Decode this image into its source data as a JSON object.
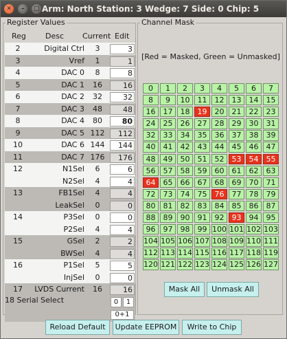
{
  "window": {
    "title": "Arm: North Station: 3 Wedge: 7 Side: 0 Chip: 5"
  },
  "registers": {
    "group_label": "Register Values",
    "headers": {
      "reg": "Reg",
      "desc": "Desc",
      "current": "Current",
      "edit": "Edit"
    },
    "rows": [
      {
        "reg": "2",
        "desc": "Digital Ctrl",
        "current": "3",
        "edit": "3"
      },
      {
        "reg": "3",
        "desc": "Vref",
        "current": "1",
        "edit": "1"
      },
      {
        "reg": "4",
        "desc": "DAC 0",
        "current": "8",
        "edit": "8"
      },
      {
        "reg": "5",
        "desc": "DAC 1",
        "current": "16",
        "edit": "16"
      },
      {
        "reg": "6",
        "desc": "DAC 2",
        "current": "32",
        "edit": "32"
      },
      {
        "reg": "7",
        "desc": "DAC 3",
        "current": "48",
        "edit": "48"
      },
      {
        "reg": "8",
        "desc": "DAC 4",
        "current": "80",
        "edit": "80"
      },
      {
        "reg": "9",
        "desc": "DAC 5",
        "current": "112",
        "edit": "112"
      },
      {
        "reg": "10",
        "desc": "DAC 6",
        "current": "144",
        "edit": "144"
      },
      {
        "reg": "11",
        "desc": "DAC 7",
        "current": "176",
        "edit": "176"
      },
      {
        "reg": "12",
        "desc": "N1Sel",
        "current": "6",
        "edit": "6"
      },
      {
        "reg": "",
        "desc": "N2Sel",
        "current": "4",
        "edit": "4"
      },
      {
        "reg": "13",
        "desc": "FB1Sel",
        "current": "4",
        "edit": "4"
      },
      {
        "reg": "",
        "desc": "LeakSel",
        "current": "0",
        "edit": "0"
      },
      {
        "reg": "14",
        "desc": "P3Sel",
        "current": "0",
        "edit": "0"
      },
      {
        "reg": "",
        "desc": "P2Sel",
        "current": "4",
        "edit": "4"
      },
      {
        "reg": "15",
        "desc": "GSel",
        "current": "2",
        "edit": "2"
      },
      {
        "reg": "",
        "desc": "BWSel",
        "current": "4",
        "edit": "4"
      },
      {
        "reg": "16",
        "desc": "P1Sel",
        "current": "5",
        "edit": "5"
      },
      {
        "reg": "",
        "desc": "InjSel",
        "current": "0",
        "edit": "0"
      },
      {
        "reg": "17",
        "desc": "LVDS Current",
        "current": "16",
        "edit": "16"
      }
    ],
    "serial": {
      "reg": "18",
      "desc": "Serial Select",
      "btn0": "0",
      "btn1": "1",
      "value": "0+1"
    }
  },
  "channel_mask": {
    "group_label": "Channel Mask",
    "legend": "[Red = Masked, Green = Unmasked]",
    "masked_channels": [
      19,
      53,
      54,
      55,
      64,
      76,
      93
    ],
    "colors": {
      "masked": "#e8331c",
      "unmasked": "#b8f3a6"
    },
    "mask_all_label": "Mask All",
    "unmask_all_label": "Unmask All"
  },
  "footer": {
    "reload_label": "Reload Default",
    "update_label": "Update EEPROM",
    "write_label": "Write to Chip"
  }
}
